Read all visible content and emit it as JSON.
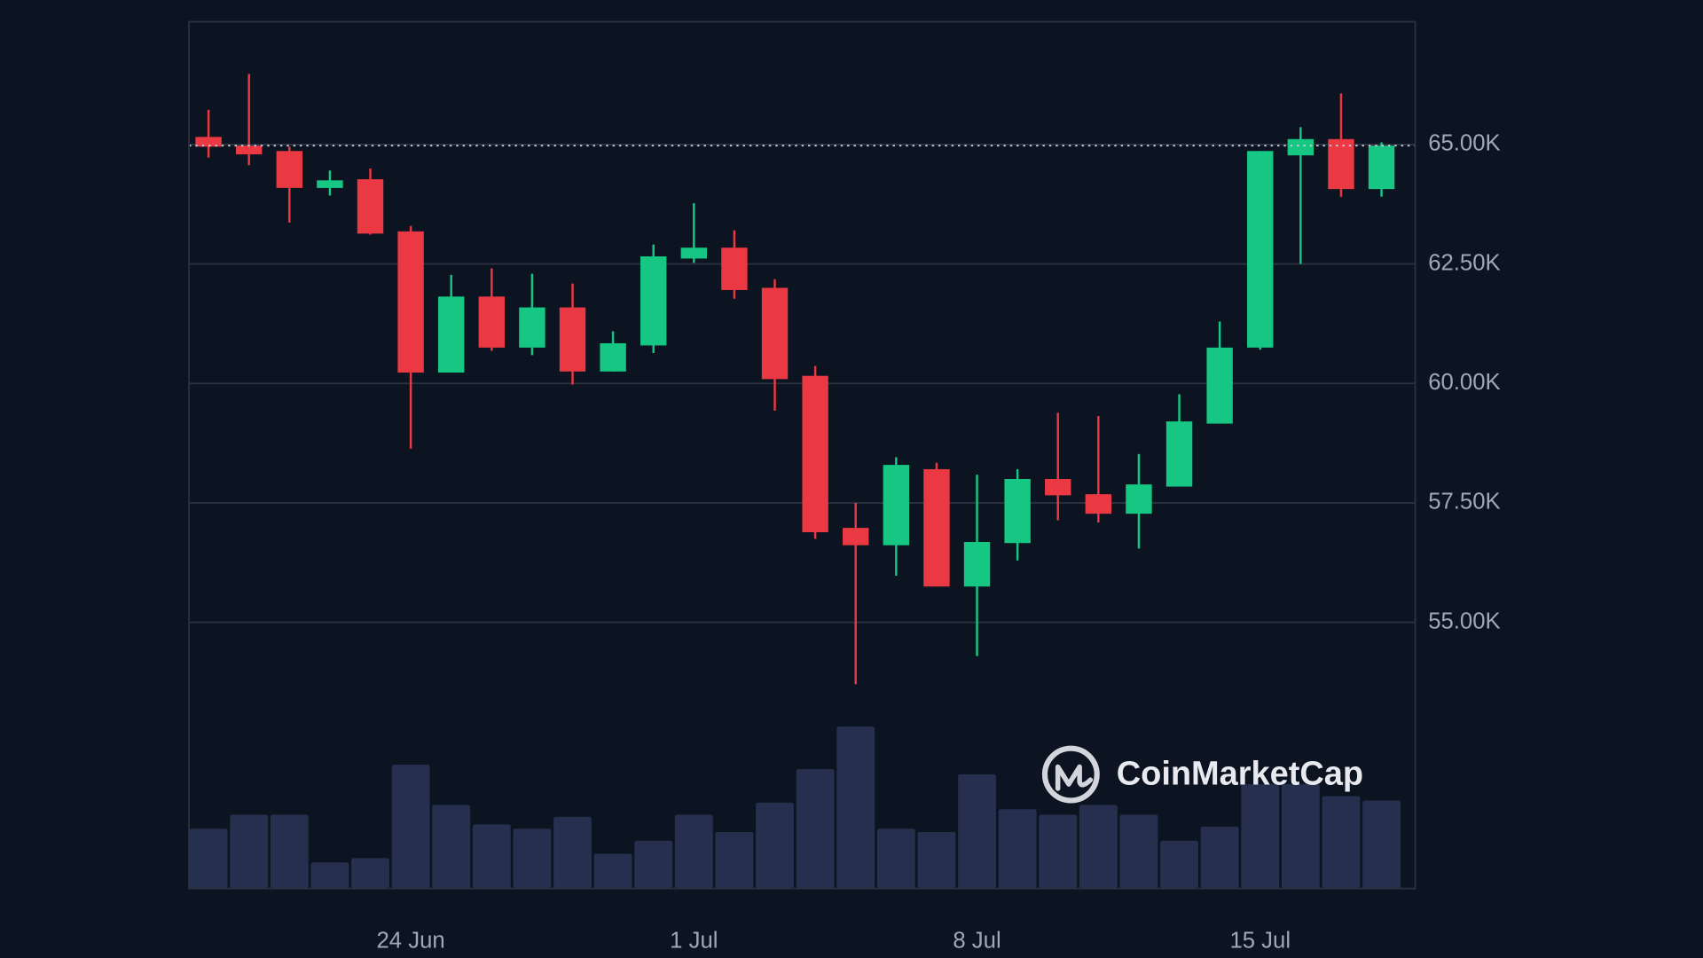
{
  "chart_data": {
    "type": "candlestick",
    "categories": [
      null,
      null,
      null,
      null,
      null,
      "24 Jun",
      null,
      null,
      null,
      null,
      null,
      null,
      "1 Jul",
      null,
      null,
      null,
      null,
      null,
      null,
      "8 Jul",
      null,
      null,
      null,
      null,
      null,
      null,
      "15 Jul",
      null,
      null,
      null
    ],
    "open": [
      65159,
      64977,
      64864,
      64091,
      64273,
      63182,
      60227,
      61818,
      60750,
      61591,
      60250,
      60795,
      62614,
      62841,
      62000,
      60159,
      56977,
      56614,
      58205,
      55750,
      56659,
      58000,
      57682,
      57273,
      57841,
      59159,
      60750,
      64773,
      65114,
      64068
    ],
    "high": [
      65727,
      66477,
      64955,
      64455,
      64500,
      63295,
      62273,
      62409,
      62295,
      62091,
      61091,
      62909,
      63773,
      63205,
      62182,
      60364,
      57500,
      58455,
      58341,
      58091,
      58205,
      59386,
      59318,
      58523,
      59773,
      61295,
      64864,
      65364,
      66068,
      65045
    ],
    "low": [
      64727,
      64568,
      63364,
      63932,
      63114,
      58636,
      60227,
      60682,
      60591,
      59977,
      60250,
      60636,
      62523,
      61773,
      59432,
      56750,
      53705,
      55977,
      55750,
      54295,
      56295,
      57136,
      57091,
      56545,
      57841,
      59159,
      60705,
      62500,
      63909,
      63909
    ],
    "close": [
      64955,
      64795,
      64091,
      64250,
      63136,
      60227,
      61818,
      60750,
      61591,
      60250,
      60841,
      62659,
      62841,
      61955,
      60091,
      56886,
      56614,
      58295,
      55750,
      56682,
      58000,
      57659,
      57273,
      57886,
      59205,
      60750,
      64864,
      65114,
      64068,
      64977
    ],
    "volume": [
      55,
      68,
      68,
      24,
      28,
      114,
      77,
      59,
      55,
      66,
      32,
      44,
      68,
      52,
      79,
      110,
      149,
      55,
      52,
      105,
      73,
      68,
      77,
      68,
      44,
      57,
      96,
      96,
      85,
      81
    ],
    "up_color": "#16c784",
    "down_color": "#ea3943",
    "volume_color": "#262f4d",
    "ylim": [
      49430,
      67570
    ],
    "volume_lim": [
      0,
      200
    ],
    "yticks": [
      {
        "value": 55000,
        "label": "55.00K"
      },
      {
        "value": 57500,
        "label": "57.50K"
      },
      {
        "value": 60000,
        "label": "60.00K"
      },
      {
        "value": 62500,
        "label": "62.50K"
      },
      {
        "value": 65000,
        "label": "65.00K"
      }
    ],
    "grid": true,
    "watermark": "CoinMarketCap"
  }
}
